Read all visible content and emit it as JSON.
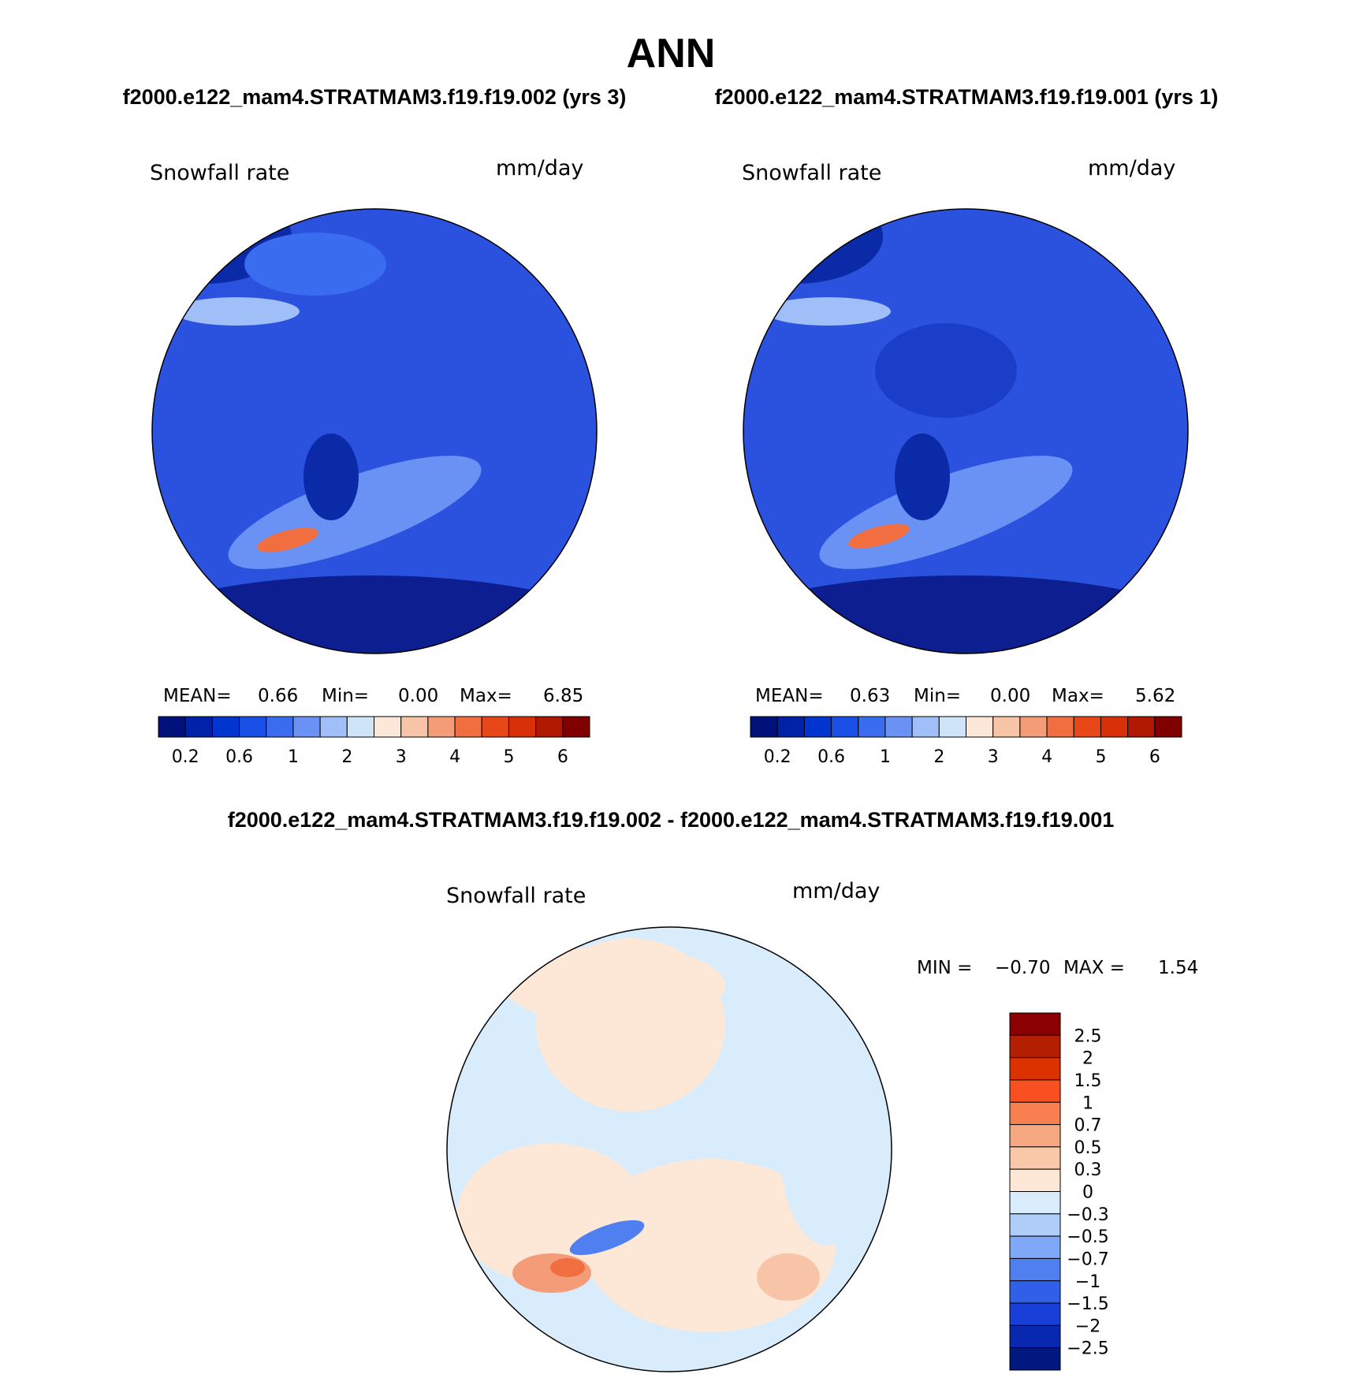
{
  "header": {
    "title": "ANN",
    "subtitles": [
      "f2000.e122_mam4.STRATMAM3.f19.f19.002 (yrs 3)",
      "f2000.e122_mam4.STRATMAM3.f19.f19.001 (yrs 1)"
    ]
  },
  "panels": [
    {
      "label": "Snowfall rate",
      "units": "mm/day",
      "stats": [
        "MEAN=",
        "0.66",
        "Min=",
        "0.00",
        "Max=",
        "6.85"
      ],
      "colorbar": {
        "colors": [
          "#00127a",
          "#0022a8",
          "#0035d0",
          "#1a50e8",
          "#3a6cf0",
          "#6a92f4",
          "#a0bef8",
          "#d0e4f8",
          "#fce8d8",
          "#f8c4a8",
          "#f49c78",
          "#f06e40",
          "#e84818",
          "#d83008",
          "#b01800",
          "#800000"
        ],
        "labels": [
          "0.2",
          "0.6",
          "1",
          "2",
          "3",
          "4",
          "5",
          "6"
        ]
      }
    },
    {
      "label": "Snowfall rate",
      "units": "mm/day",
      "stats": [
        "MEAN=",
        "0.63",
        "Min=",
        "0.00",
        "Max=",
        "5.62"
      ],
      "colorbar": {
        "colors": [
          "#00127a",
          "#0022a8",
          "#0035d0",
          "#1a50e8",
          "#3a6cf0",
          "#6a92f4",
          "#a0bef8",
          "#d0e4f8",
          "#fce8d8",
          "#f8c4a8",
          "#f49c78",
          "#f06e40",
          "#e84818",
          "#d83008",
          "#b01800",
          "#800000"
        ],
        "labels": [
          "0.2",
          "0.6",
          "1",
          "2",
          "3",
          "4",
          "5",
          "6"
        ]
      }
    }
  ],
  "difference": {
    "title": "f2000.e122_mam4.STRATMAM3.f19.f19.002 - f2000.e122_mam4.STRATMAM3.f19.f19.001",
    "label": "Snowfall rate",
    "units": "mm/day",
    "stats": [
      "MIN =",
      "−0.70",
      "MAX =",
      "1.54"
    ],
    "colorbar": {
      "colors": [
        "#8b0000",
        "#b41e00",
        "#dc3200",
        "#f85020",
        "#f88050",
        "#f8a880",
        "#f8c8a8",
        "#fde8d8",
        "#d8ecfc",
        "#b0ccf8",
        "#80a8f8",
        "#5080f0",
        "#3060e8",
        "#1840d8",
        "#0828b0",
        "#001880"
      ],
      "labels": [
        "2.5",
        "2",
        "1.5",
        "1",
        "0.7",
        "0.5",
        "0.3",
        "0",
        "−0.3",
        "−0.5",
        "−0.7",
        "−1",
        "−1.5",
        "−2",
        "−2.5"
      ]
    }
  }
}
